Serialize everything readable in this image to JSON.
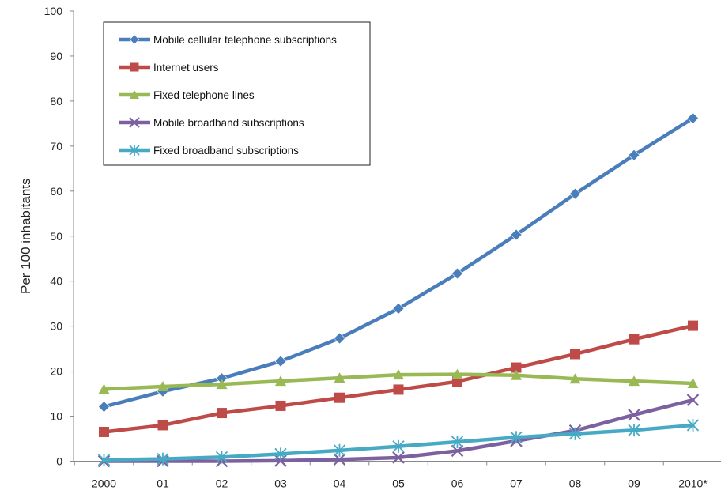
{
  "chart_data": {
    "type": "line",
    "ylabel": "Per 100 inhabitants",
    "xlabel": "",
    "ylim": [
      0,
      100
    ],
    "yticks": [
      0,
      10,
      20,
      30,
      40,
      50,
      60,
      70,
      80,
      90,
      100
    ],
    "grid": false,
    "legend_position": "top-left",
    "categories": [
      "2000",
      "01",
      "02",
      "03",
      "04",
      "05",
      "06",
      "07",
      "08",
      "09",
      "2010*"
    ],
    "series": [
      {
        "name": "Mobile cellular telephone subscriptions",
        "color": "#4a7ebb",
        "marker": "diamond",
        "values": [
          12.1,
          15.5,
          18.4,
          22.2,
          27.3,
          33.9,
          41.7,
          50.3,
          59.4,
          68.0,
          76.2
        ]
      },
      {
        "name": "Internet users",
        "color": "#be4b48",
        "marker": "square",
        "values": [
          6.5,
          8.0,
          10.7,
          12.3,
          14.1,
          15.9,
          17.7,
          20.8,
          23.8,
          27.1,
          30.1
        ]
      },
      {
        "name": "Fixed telephone lines",
        "color": "#98b954",
        "marker": "triangle",
        "values": [
          16.0,
          16.6,
          17.1,
          17.8,
          18.5,
          19.2,
          19.3,
          19.1,
          18.3,
          17.8,
          17.3
        ]
      },
      {
        "name": "Mobile broadband subscriptions",
        "color": "#7d60a0",
        "marker": "x",
        "values": [
          0.0,
          0.0,
          0.0,
          0.1,
          0.4,
          0.8,
          2.3,
          4.5,
          6.8,
          10.3,
          13.6
        ]
      },
      {
        "name": "Fixed broadband subscriptions",
        "color": "#46aac5",
        "marker": "star",
        "values": [
          0.3,
          0.5,
          0.9,
          1.6,
          2.4,
          3.3,
          4.3,
          5.3,
          6.1,
          6.9,
          8.0
        ]
      }
    ]
  }
}
